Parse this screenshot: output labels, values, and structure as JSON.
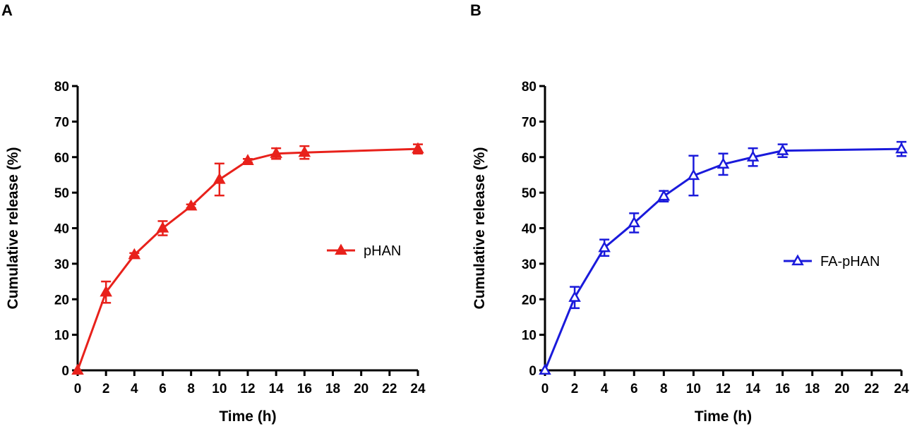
{
  "panels": [
    "A",
    "B"
  ],
  "chart_data": [
    {
      "type": "line",
      "panel": "A",
      "title": "",
      "xlabel": "Time (h)",
      "ylabel": "Cumulative release (%)",
      "xlim": [
        0,
        24
      ],
      "ylim": [
        0,
        80
      ],
      "xticks": [
        0,
        2,
        4,
        6,
        8,
        10,
        12,
        14,
        16,
        18,
        20,
        22,
        24
      ],
      "yticks": [
        0,
        10,
        20,
        30,
        40,
        50,
        60,
        70,
        80
      ],
      "grid": false,
      "legend_position": "right-middle",
      "series": [
        {
          "name": "pHAN",
          "color": "#e8211b",
          "marker": "filled-triangle",
          "x": [
            0,
            2,
            4,
            6,
            8,
            10,
            12,
            14,
            16,
            24
          ],
          "y": [
            0,
            22,
            32.5,
            40,
            46.2,
            53.7,
            59,
            61,
            61.3,
            62.3
          ],
          "error": [
            0,
            3,
            0.5,
            2,
            0.5,
            4.5,
            0.5,
            1.5,
            1.8,
            1.3
          ]
        }
      ]
    },
    {
      "type": "line",
      "panel": "B",
      "title": "",
      "xlabel": "Time (h)",
      "ylabel": "Cumulative release (%)",
      "xlim": [
        0,
        24
      ],
      "ylim": [
        0,
        80
      ],
      "xticks": [
        0,
        2,
        4,
        6,
        8,
        10,
        12,
        14,
        16,
        18,
        20,
        22,
        24
      ],
      "yticks": [
        0,
        10,
        20,
        30,
        40,
        50,
        60,
        70,
        80
      ],
      "grid": false,
      "legend_position": "right-middle",
      "series": [
        {
          "name": "FA-pHAN",
          "color": "#1a1adb",
          "marker": "open-triangle",
          "x": [
            0,
            2,
            4,
            6,
            8,
            10,
            12,
            14,
            16,
            24
          ],
          "y": [
            0,
            20.5,
            34.5,
            41.5,
            49,
            54.8,
            58,
            60,
            61.8,
            62.3
          ],
          "error": [
            0,
            3,
            2.3,
            2.7,
            1.5,
            5.6,
            3,
            2.5,
            1.8,
            2
          ]
        }
      ]
    }
  ]
}
